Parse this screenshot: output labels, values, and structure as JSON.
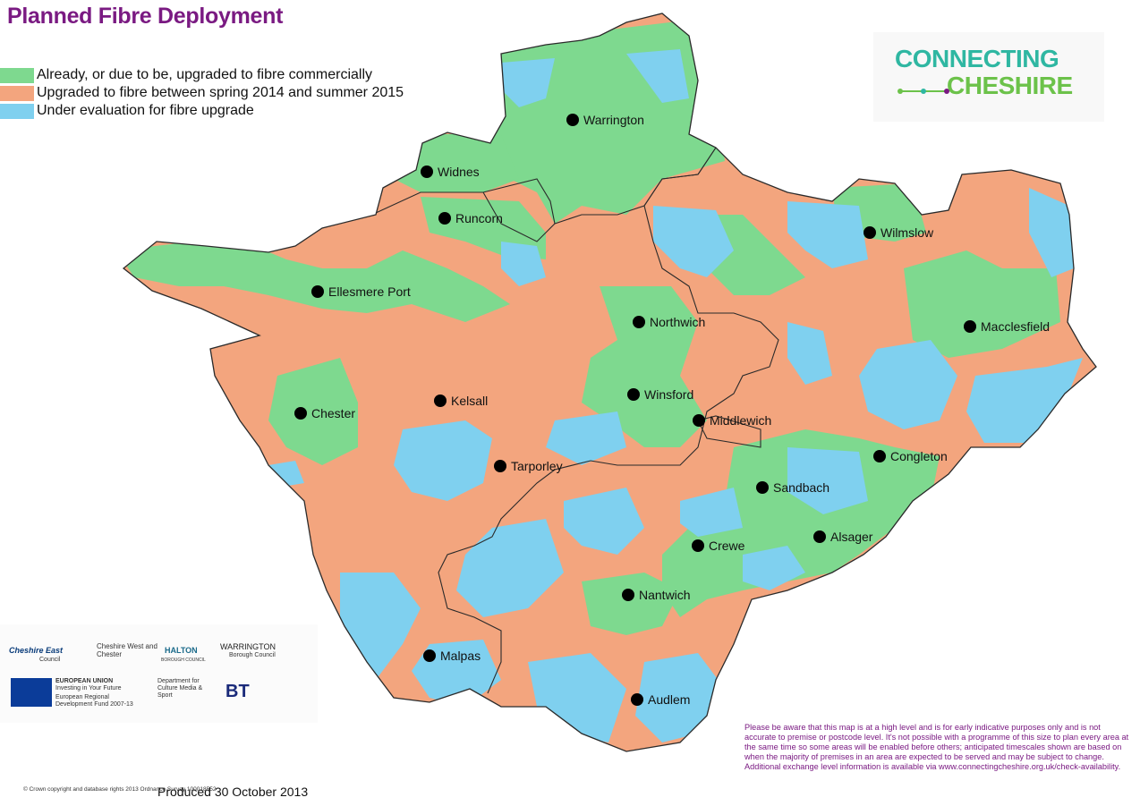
{
  "title": "Planned Fibre Deployment",
  "legend": [
    {
      "label": "Already, or due to be, upgraded to fibre commercially",
      "color": "#7ed98f"
    },
    {
      "label": "Upgraded to fibre between spring 2014 and summer 2015",
      "color": "#f3a57e"
    },
    {
      "label": "Under evaluation for fibre upgrade",
      "color": "#7fd0ef"
    }
  ],
  "colors": {
    "green": "#7ed98f",
    "orange": "#f3a57e",
    "blue": "#7fd0ef",
    "boundary": "#2a2a2a",
    "title": "#7a1a82"
  },
  "logo": {
    "line1": "CONNECTING",
    "line2": "CHESHIRE"
  },
  "towns": [
    {
      "name": "Warrington"
    },
    {
      "name": "Widnes"
    },
    {
      "name": "Runcorn"
    },
    {
      "name": "Wilmslow"
    },
    {
      "name": "Ellesmere Port"
    },
    {
      "name": "Northwich"
    },
    {
      "name": "Macclesfield"
    },
    {
      "name": "Kelsall"
    },
    {
      "name": "Winsford"
    },
    {
      "name": "Chester"
    },
    {
      "name": "Middlewich"
    },
    {
      "name": "Congleton"
    },
    {
      "name": "Tarporley"
    },
    {
      "name": "Sandbach"
    },
    {
      "name": "Alsager"
    },
    {
      "name": "Crewe"
    },
    {
      "name": "Nantwich"
    },
    {
      "name": "Malpas"
    },
    {
      "name": "Audlem"
    }
  ],
  "partner_logos": {
    "cheshire_east": "Cheshire East",
    "cheshire_east_sub": "Council",
    "cheshire_west": "Cheshire West and Chester",
    "halton": "HALTON",
    "halton_sub": "BOROUGH COUNCIL",
    "warrington": "WARRINGTON",
    "warrington_sub": "Borough Council",
    "eu_title": "EUROPEAN UNION",
    "eu_sub": "Investing in Your Future",
    "erdf": "European Regional Development Fund 2007-13",
    "dcms": "Department for Culture Media & Sport",
    "bt": "BT"
  },
  "disclaimer": "Please be aware that this map is at a high level and is for early indicative purposes only and is not accurate to premise or postcode level.  It's not possible with a programme of this size to plan every area at the same time so some areas will be enabled before others; anticipated timescales shown are based on when the majority of premises in an area are expected to be served and may be subject to change. Additional exchange level information is available via www.connectingcheshire.org.uk/check-availability.",
  "produced": "Produced 30 October 2013",
  "copyright": "© Crown copyright and database rights 2013 Ordnance Survey 100018552"
}
